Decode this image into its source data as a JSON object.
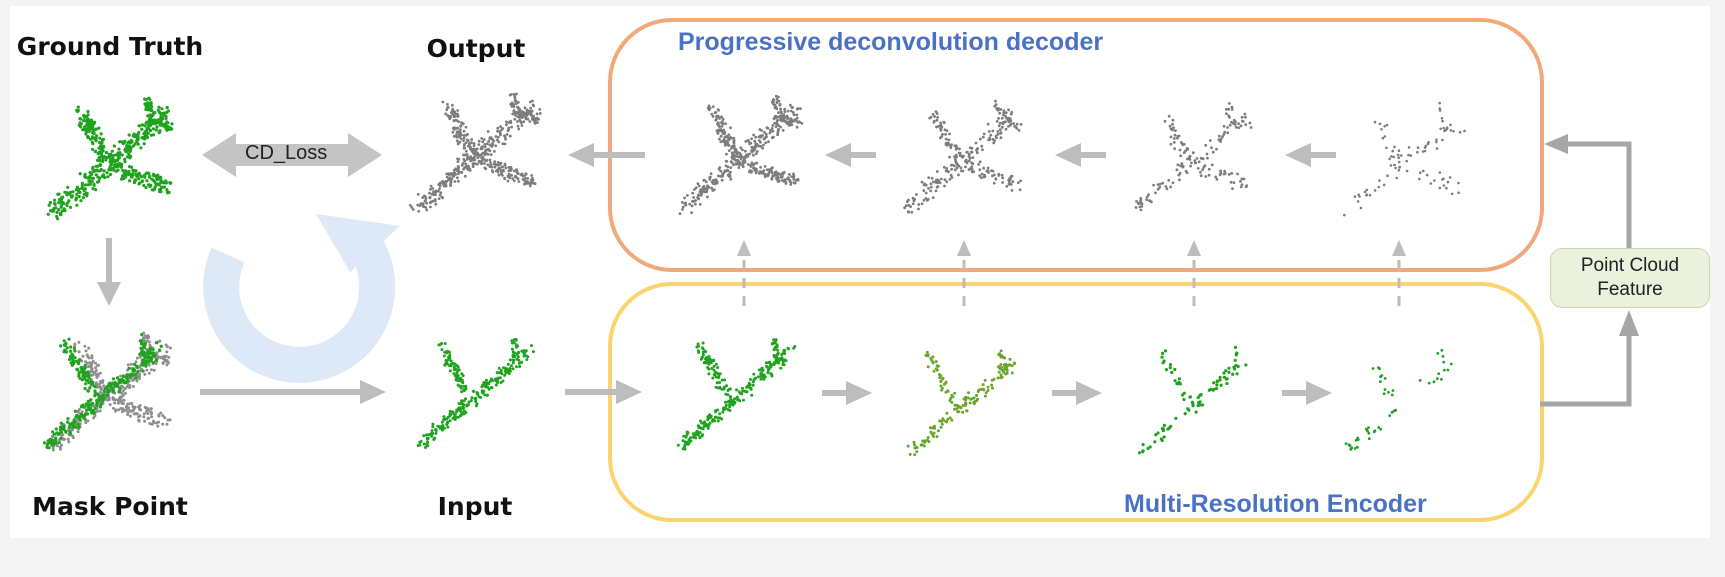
{
  "labels": {
    "ground_truth": "Ground Truth",
    "output": "Output",
    "mask_point": "Mask Point",
    "input": "Input"
  },
  "decoder": {
    "title": "Progressive deconvolution decoder",
    "border_color": "#f0a97a"
  },
  "encoder": {
    "title": "Multi-Resolution Encoder",
    "border_color": "#fad46e"
  },
  "loss": {
    "label": "CD_Loss"
  },
  "feature": {
    "line1": "Point Cloud",
    "line2": "Feature"
  },
  "colors": {
    "ground_truth_points": "#1fa31f",
    "mask_points_gray": "#8f8f8f",
    "output_points": "#7d7d7d",
    "title_blue": "#4a72c4",
    "arrow_gray": "#bdbdbd",
    "cycle_arrow": "#dde9f7"
  }
}
